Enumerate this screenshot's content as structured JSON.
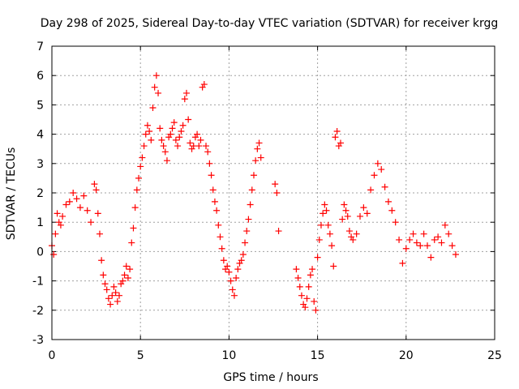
{
  "chart_data": {
    "type": "scatter",
    "title": "Day 298 of 2025, Sidereal Day-to-day VTEC variation (SDTVAR) for receiver krgg",
    "xlabel": "GPS time / hours",
    "ylabel": "SDTVAR / TECUs",
    "xlim": [
      0,
      25
    ],
    "ylim": [
      -3,
      7
    ],
    "xticks": [
      "0",
      "5",
      "10",
      "15",
      "20",
      "25"
    ],
    "yticks": [
      "-3",
      "-2",
      "-1",
      "0",
      "1",
      "2",
      "3",
      "4",
      "5",
      "6",
      "7"
    ],
    "grid": true,
    "marker": "+",
    "marker_color": "#ff0000",
    "series": [
      {
        "name": "SDTVAR",
        "x": [
          0.0,
          0.1,
          0.2,
          0.3,
          0.4,
          0.5,
          0.6,
          0.8,
          1.0,
          1.2,
          1.4,
          1.6,
          1.8,
          2.0,
          2.2,
          2.4,
          2.5,
          2.6,
          2.7,
          2.8,
          2.9,
          3.0,
          3.1,
          3.2,
          3.3,
          3.4,
          3.5,
          3.6,
          3.7,
          3.8,
          3.9,
          4.0,
          4.1,
          4.2,
          4.3,
          4.4,
          4.5,
          4.6,
          4.7,
          4.8,
          4.9,
          5.0,
          5.1,
          5.2,
          5.3,
          5.4,
          5.5,
          5.6,
          5.7,
          5.8,
          5.9,
          6.0,
          6.1,
          6.2,
          6.3,
          6.4,
          6.5,
          6.6,
          6.7,
          6.8,
          6.9,
          7.0,
          7.1,
          7.2,
          7.3,
          7.4,
          7.5,
          7.6,
          7.7,
          7.8,
          7.9,
          8.0,
          8.1,
          8.2,
          8.3,
          8.4,
          8.5,
          8.6,
          8.7,
          8.8,
          8.9,
          9.0,
          9.1,
          9.2,
          9.3,
          9.4,
          9.5,
          9.6,
          9.7,
          9.8,
          9.9,
          10.0,
          10.1,
          10.2,
          10.3,
          10.4,
          10.5,
          10.6,
          10.7,
          10.8,
          10.9,
          11.0,
          11.1,
          11.2,
          11.3,
          11.4,
          11.5,
          11.6,
          11.7,
          11.8,
          12.6,
          12.7,
          12.8,
          13.8,
          13.9,
          14.0,
          14.1,
          14.2,
          14.3,
          14.4,
          14.5,
          14.6,
          14.7,
          14.8,
          14.9,
          15.0,
          15.1,
          15.2,
          15.3,
          15.4,
          15.5,
          15.6,
          15.7,
          15.8,
          15.9,
          16.0,
          16.1,
          16.2,
          16.3,
          16.4,
          16.5,
          16.6,
          16.7,
          16.8,
          16.9,
          17.0,
          17.2,
          17.4,
          17.6,
          17.8,
          18.0,
          18.2,
          18.4,
          18.6,
          18.8,
          19.0,
          19.2,
          19.4,
          19.6,
          19.8,
          20.0,
          20.2,
          20.4,
          20.6,
          20.8,
          21.0,
          21.2,
          21.4,
          21.6,
          21.8,
          22.0,
          22.2,
          22.4,
          22.6,
          22.8
        ],
        "y": [
          0.2,
          -0.1,
          0.6,
          1.3,
          1.0,
          0.9,
          1.2,
          1.6,
          1.7,
          2.0,
          1.8,
          1.5,
          1.9,
          1.4,
          1.0,
          2.3,
          2.1,
          1.3,
          0.6,
          -0.3,
          -0.8,
          -1.1,
          -1.3,
          -1.6,
          -1.8,
          -1.5,
          -1.2,
          -1.4,
          -1.7,
          -1.5,
          -1.1,
          -1.0,
          -0.8,
          -0.5,
          -0.9,
          -0.6,
          0.3,
          0.8,
          1.5,
          2.1,
          2.5,
          2.9,
          3.2,
          3.6,
          4.0,
          4.3,
          4.1,
          3.8,
          4.9,
          5.6,
          6.0,
          5.4,
          4.2,
          3.8,
          3.6,
          3.4,
          3.1,
          3.9,
          4.0,
          4.2,
          4.4,
          3.8,
          3.6,
          3.9,
          4.1,
          4.3,
          5.2,
          5.4,
          4.5,
          3.7,
          3.5,
          3.6,
          3.9,
          4.0,
          3.6,
          3.8,
          5.6,
          5.7,
          3.6,
          3.4,
          3.0,
          2.6,
          2.1,
          1.7,
          1.4,
          0.9,
          0.5,
          0.1,
          -0.3,
          -0.6,
          -0.5,
          -0.7,
          -1.0,
          -1.3,
          -1.5,
          -0.9,
          -0.6,
          -0.4,
          -0.3,
          -0.1,
          0.3,
          0.7,
          1.1,
          1.6,
          2.1,
          2.6,
          3.1,
          3.5,
          3.7,
          3.2,
          2.3,
          2.0,
          0.7,
          -0.6,
          -0.9,
          -1.2,
          -1.5,
          -1.8,
          -1.9,
          -1.6,
          -1.2,
          -0.8,
          -0.6,
          -1.7,
          -2.0,
          -0.2,
          0.4,
          0.9,
          1.3,
          1.6,
          1.4,
          0.9,
          0.6,
          0.2,
          -0.5,
          3.9,
          4.1,
          3.6,
          3.7,
          1.1,
          1.6,
          1.4,
          1.2,
          0.7,
          0.5,
          0.4,
          0.6,
          1.2,
          1.5,
          1.3,
          2.1,
          2.6,
          3.0,
          2.8,
          2.2,
          1.7,
          1.4,
          1.0,
          0.4,
          -0.4,
          0.1,
          0.4,
          0.6,
          0.3,
          0.2,
          0.6,
          0.2,
          -0.2,
          0.4,
          0.5,
          0.3,
          0.9,
          0.6,
          0.2,
          -0.1
        ]
      }
    ]
  }
}
